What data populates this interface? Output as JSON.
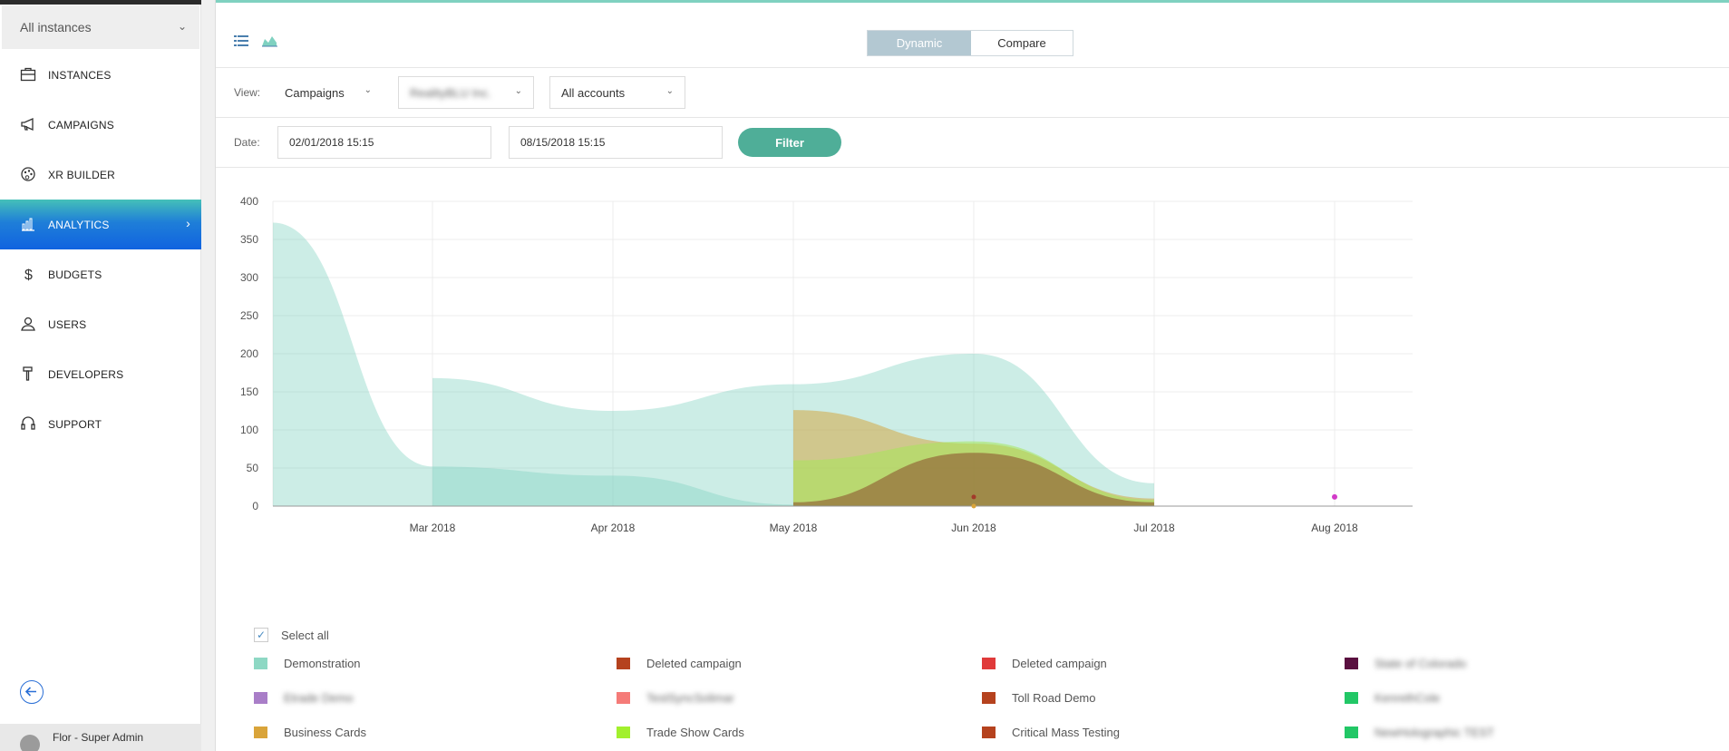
{
  "sidebar": {
    "instance_select": "All instances",
    "items": [
      {
        "label": "INSTANCES",
        "icon": "briefcase-icon"
      },
      {
        "label": "CAMPAIGNS",
        "icon": "megaphone-icon"
      },
      {
        "label": "XR BUILDER",
        "icon": "palette-icon"
      },
      {
        "label": "ANALYTICS",
        "icon": "bar-chart-icon",
        "active": true
      },
      {
        "label": "BUDGETS",
        "icon": "dollar-icon"
      },
      {
        "label": "USERS",
        "icon": "user-icon"
      },
      {
        "label": "DEVELOPERS",
        "icon": "hammer-icon"
      },
      {
        "label": "SUPPORT",
        "icon": "headset-icon"
      }
    ],
    "user": "Flor - Super Admin"
  },
  "toolbar": {
    "mode_tabs": [
      "Dynamic",
      "Compare"
    ],
    "active_mode": "Dynamic"
  },
  "filters": {
    "view_label": "View:",
    "view_value": "Campaigns",
    "company_value": "RealityBLU Inc.",
    "accounts_value": "All accounts",
    "date_label": "Date:",
    "date_from": "02/01/2018 15:15",
    "date_to": "08/15/2018 15:15",
    "filter_button": "Filter"
  },
  "chart_data": {
    "type": "area",
    "x": [
      "Mar 2018",
      "Apr 2018",
      "May 2018",
      "Jun 2018",
      "Jul 2018",
      "Aug 2018"
    ],
    "y_ticks": [
      0,
      50,
      100,
      150,
      200,
      250,
      300,
      350,
      400
    ],
    "ylim": [
      0,
      400
    ],
    "grid": true,
    "series": [
      {
        "name": "Demonstration",
        "color": "#7fd1c0",
        "points": [
          [
            0,
            372
          ],
          [
            1,
            52
          ],
          [
            2,
            40
          ],
          [
            3,
            2
          ],
          [
            4,
            2
          ]
        ]
      },
      {
        "name": "Demonstration",
        "color": "#7fd1c0",
        "points": [
          [
            1,
            168
          ],
          [
            2,
            125
          ],
          [
            3,
            160
          ],
          [
            4,
            200
          ],
          [
            5,
            30
          ]
        ]
      },
      {
        "name": "Business Cards",
        "color": "#d4a843",
        "points": [
          [
            3,
            126
          ],
          [
            4,
            82
          ],
          [
            5,
            10
          ]
        ]
      },
      {
        "name": "Trade Show Cards",
        "color": "#a5e65a",
        "points": [
          [
            3,
            60
          ],
          [
            4,
            85
          ],
          [
            5,
            8
          ]
        ]
      },
      {
        "name": "Toll Road Demo",
        "color": "#8b4a2a",
        "points": [
          [
            3,
            5
          ],
          [
            4,
            70
          ],
          [
            5,
            5
          ]
        ]
      }
    ]
  },
  "legend": {
    "select_all": "Select all",
    "items": [
      {
        "label": "Demonstration",
        "color": "#8ed8c4",
        "blurred": false
      },
      {
        "label": "Deleted campaign",
        "color": "#b5421e",
        "blurred": false
      },
      {
        "label": "Deleted campaign",
        "color": "#e03a3a",
        "blurred": false
      },
      {
        "label": "State of Colorado",
        "color": "#5a1040",
        "blurred": true
      },
      {
        "label": "Etrade Demo",
        "color": "#a97ec8",
        "blurred": true
      },
      {
        "label": "TestSyncSolimar",
        "color": "#f57b78",
        "blurred": true
      },
      {
        "label": "Toll Road Demo",
        "color": "#b5421e",
        "blurred": false
      },
      {
        "label": "KenrethCole",
        "color": "#22c766",
        "blurred": true
      },
      {
        "label": "Business Cards",
        "color": "#d9a43a",
        "blurred": false
      },
      {
        "label": "Trade Show Cards",
        "color": "#a2f02d",
        "blurred": false
      },
      {
        "label": "Critical Mass Testing",
        "color": "#b5421e",
        "blurred": false
      },
      {
        "label": "NewHolographic TEST",
        "color": "#22c766",
        "blurred": true
      }
    ]
  }
}
